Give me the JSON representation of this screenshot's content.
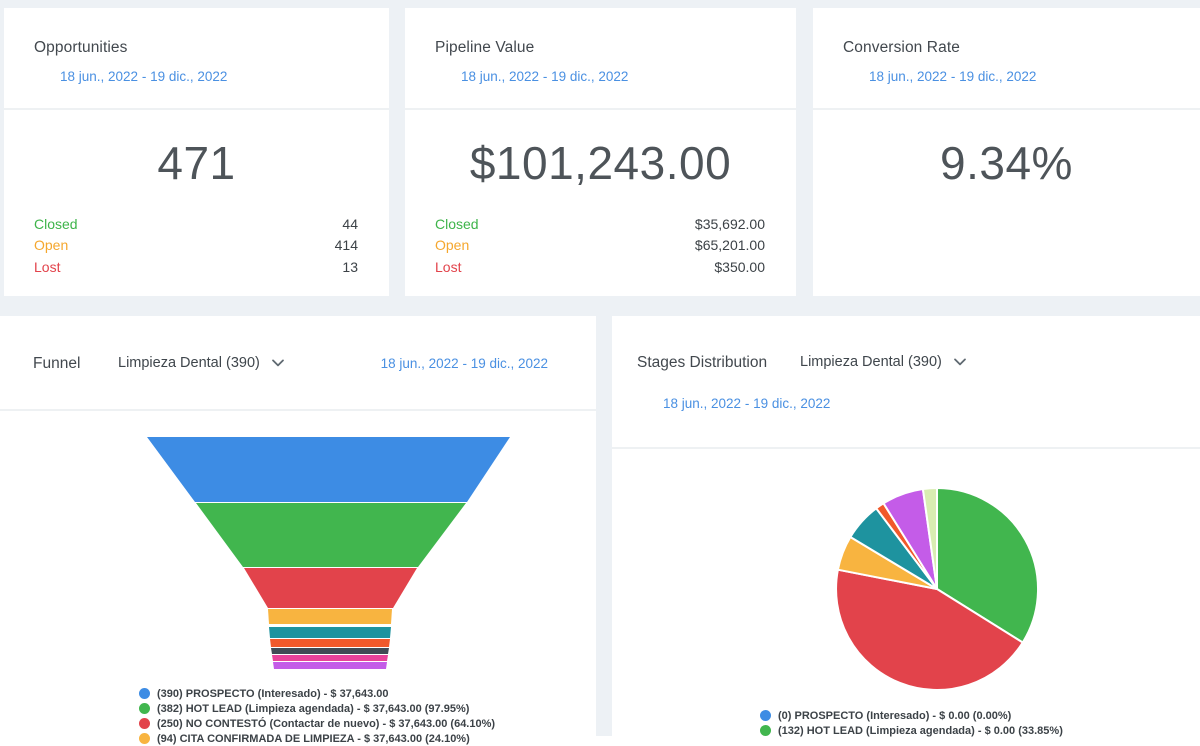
{
  "cards": {
    "opportunities": {
      "title": "Opportunities",
      "date_range": "18 jun., 2022 - 19 dic., 2022",
      "total": "471",
      "rows": [
        {
          "label": "Closed",
          "value": "44",
          "color": "#3eb44a"
        },
        {
          "label": "Open",
          "value": "414",
          "color": "#f5a72e"
        },
        {
          "label": "Lost",
          "value": "13",
          "color": "#e2434b"
        }
      ]
    },
    "pipeline_value": {
      "title": "Pipeline Value",
      "date_range": "18 jun., 2022 - 19 dic., 2022",
      "total": "$101,243.00",
      "rows": [
        {
          "label": "Closed",
          "value": "$35,692.00",
          "color": "#3eb44a"
        },
        {
          "label": "Open",
          "value": "$65,201.00",
          "color": "#f5a72e"
        },
        {
          "label": "Lost",
          "value": "$350.00",
          "color": "#e2434b"
        }
      ]
    },
    "conversion_rate": {
      "title": "Conversion Rate",
      "date_range": "18 jun., 2022 - 19 dic., 2022",
      "total": "9.34%"
    }
  },
  "funnel_panel": {
    "title": "Funnel",
    "filter_label": "Limpieza Dental (390)",
    "date_range": "18 jun., 2022 - 19 dic., 2022",
    "legend": [
      {
        "text": "(390) PROSPECTO (Interesado) - $ 37,643.00",
        "color": "#3d8ce4"
      },
      {
        "text": "(382) HOT LEAD (Limpieza agendada) - $ 37,643.00 (97.95%)",
        "color": "#41b64e"
      },
      {
        "text": "(250) NO CONTESTÓ (Contactar de nuevo) - $ 37,643.00 (64.10%)",
        "color": "#e2434b"
      },
      {
        "text": "(94) CITA CONFIRMADA DE LIMPIEZA - $ 37,643.00 (24.10%)",
        "color": "#f8b440"
      }
    ]
  },
  "stages_panel": {
    "title": "Stages Distribution",
    "filter_label": "Limpieza Dental (390)",
    "date_range": "18 jun., 2022 - 19 dic., 2022",
    "legend": [
      {
        "text": "(0) PROSPECTO (Interesado) - $ 0.00 (0.00%)",
        "color": "#3d8ce4"
      },
      {
        "text": "(132) HOT LEAD (Limpieza agendada) - $ 0.00 (33.85%)",
        "color": "#41b64e"
      }
    ]
  },
  "chart_data": [
    {
      "type": "funnel",
      "title": "Funnel",
      "filter": "Limpieza Dental (390)",
      "date_range": "18 jun., 2022 - 19 dic., 2022",
      "stages": [
        {
          "count": 390,
          "label": "PROSPECTO (Interesado)",
          "value": "$ 37,643.00",
          "percent": null,
          "color": "#3d8ce4"
        },
        {
          "count": 382,
          "label": "HOT LEAD (Limpieza agendada)",
          "value": "$ 37,643.00",
          "percent": "97.95%",
          "color": "#41b64e"
        },
        {
          "count": 250,
          "label": "NO CONTESTÓ (Contactar de nuevo)",
          "value": "$ 37,643.00",
          "percent": "64.10%",
          "color": "#e2434b"
        },
        {
          "count": 94,
          "label": "CITA CONFIRMADA DE LIMPIEZA",
          "value": "$ 37,643.00",
          "percent": "24.10%",
          "color": "#f8b440"
        }
      ],
      "extra_segment_colors": [
        "#1e939f",
        "#f1592b",
        "#414b55",
        "#e9429a",
        "#c45ce8"
      ]
    },
    {
      "type": "pie",
      "title": "Stages Distribution",
      "filter": "Limpieza Dental (390)",
      "date_range": "18 jun., 2022 - 19 dic., 2022",
      "slices": [
        {
          "label": "(132) HOT LEAD (Limpieza agendada)",
          "percent": 33.85,
          "degrees": 122,
          "color": "#41b64e"
        },
        {
          "label": "",
          "degrees": 159,
          "color": "#e2434b"
        },
        {
          "label": "",
          "degrees": 20,
          "color": "#f8b440"
        },
        {
          "label": "",
          "degrees": 22,
          "color": "#1e939f"
        },
        {
          "label": "",
          "degrees": 5,
          "color": "#f1592b"
        },
        {
          "label": "",
          "degrees": 24,
          "color": "#c45ce8"
        },
        {
          "label": "",
          "degrees": 8,
          "color": "#d9edb2"
        }
      ]
    }
  ]
}
